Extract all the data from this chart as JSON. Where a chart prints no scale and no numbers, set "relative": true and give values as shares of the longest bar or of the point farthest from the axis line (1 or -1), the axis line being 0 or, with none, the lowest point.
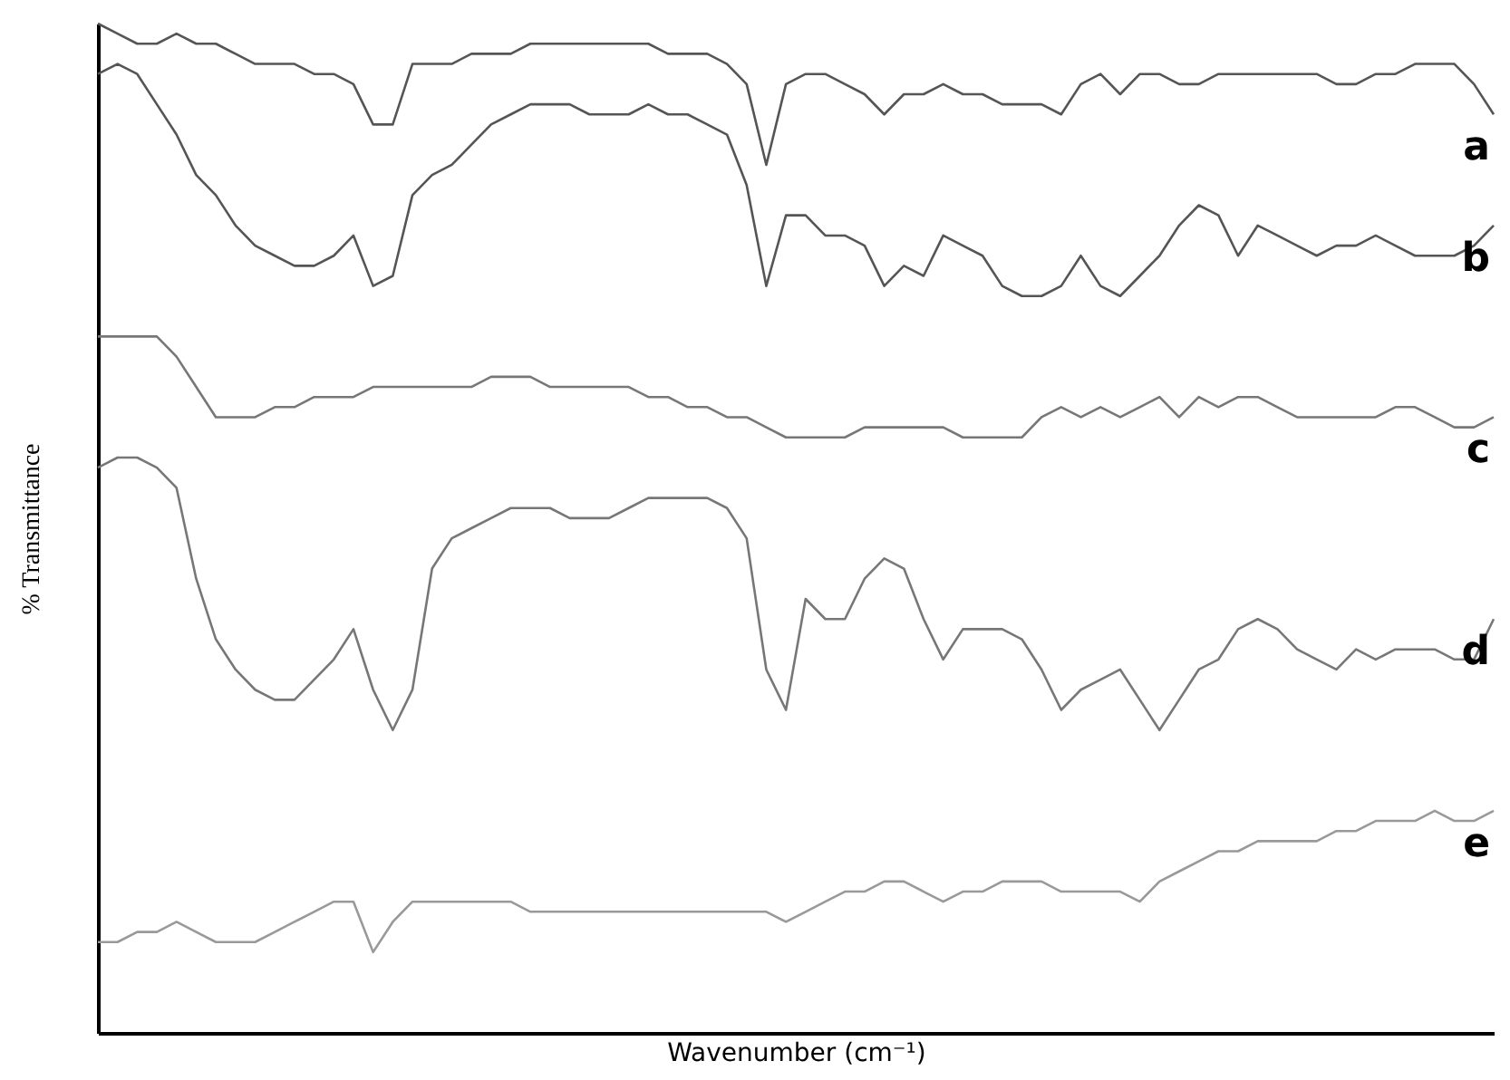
{
  "chart_data": {
    "type": "line",
    "relative": true,
    "xlabel": "Wavenumber (cm⁻¹)",
    "ylabel": "% Transmittance",
    "legend": false,
    "grid": false,
    "tick_labels": false,
    "line_style": "solid",
    "marker": "none",
    "categories": [
      null,
      null,
      null,
      null,
      null,
      null,
      null,
      null,
      null,
      null,
      null,
      null,
      null,
      null,
      null,
      null,
      null,
      null,
      null,
      null,
      null,
      null,
      null,
      null,
      null,
      null,
      null,
      null,
      null,
      null,
      null,
      null,
      null,
      null,
      null,
      null,
      null,
      null,
      null,
      null,
      null,
      null,
      null,
      null,
      null,
      null,
      null,
      null,
      null,
      null,
      null,
      null,
      null,
      null,
      null,
      null,
      null,
      null,
      null,
      null,
      null,
      null,
      null,
      null,
      null,
      null,
      null,
      null,
      null,
      null,
      null,
      null
    ],
    "series": [
      {
        "name": "a",
        "color": "#555555",
        "values": [
          1.0,
          0.99,
          0.98,
          0.98,
          0.99,
          0.98,
          0.98,
          0.97,
          0.96,
          0.96,
          0.96,
          0.95,
          0.95,
          0.94,
          0.9,
          0.9,
          0.96,
          0.96,
          0.96,
          0.97,
          0.97,
          0.97,
          0.98,
          0.98,
          0.98,
          0.98,
          0.98,
          0.98,
          0.98,
          0.97,
          0.97,
          0.97,
          0.96,
          0.94,
          0.86,
          0.94,
          0.95,
          0.95,
          0.94,
          0.93,
          0.91,
          0.93,
          0.93,
          0.94,
          0.93,
          0.93,
          0.92,
          0.92,
          0.92,
          0.91,
          0.94,
          0.95,
          0.93,
          0.95,
          0.95,
          0.94,
          0.94,
          0.95,
          0.95,
          0.95,
          0.95,
          0.95,
          0.95,
          0.94,
          0.94,
          0.95,
          0.95,
          0.96,
          0.96,
          0.96,
          0.94,
          0.91
        ]
      },
      {
        "name": "b",
        "color": "#555555",
        "values": [
          0.95,
          0.96,
          0.95,
          0.92,
          0.89,
          0.85,
          0.83,
          0.8,
          0.78,
          0.77,
          0.76,
          0.76,
          0.77,
          0.79,
          0.74,
          0.75,
          0.83,
          0.85,
          0.86,
          0.88,
          0.9,
          0.91,
          0.92,
          0.92,
          0.92,
          0.91,
          0.91,
          0.91,
          0.92,
          0.91,
          0.91,
          0.9,
          0.89,
          0.84,
          0.74,
          0.81,
          0.81,
          0.79,
          0.79,
          0.78,
          0.74,
          0.76,
          0.75,
          0.79,
          0.78,
          0.77,
          0.74,
          0.73,
          0.73,
          0.74,
          0.77,
          0.74,
          0.73,
          0.75,
          0.77,
          0.8,
          0.82,
          0.81,
          0.77,
          0.8,
          0.79,
          0.78,
          0.77,
          0.78,
          0.78,
          0.79,
          0.78,
          0.77,
          0.77,
          0.77,
          0.78,
          0.8
        ]
      },
      {
        "name": "c",
        "color": "#777777",
        "values": [
          0.69,
          0.69,
          0.69,
          0.69,
          0.67,
          0.64,
          0.61,
          0.61,
          0.61,
          0.62,
          0.62,
          0.63,
          0.63,
          0.63,
          0.64,
          0.64,
          0.64,
          0.64,
          0.64,
          0.64,
          0.65,
          0.65,
          0.65,
          0.64,
          0.64,
          0.64,
          0.64,
          0.64,
          0.63,
          0.63,
          0.62,
          0.62,
          0.61,
          0.61,
          0.6,
          0.59,
          0.59,
          0.59,
          0.59,
          0.6,
          0.6,
          0.6,
          0.6,
          0.6,
          0.59,
          0.59,
          0.59,
          0.59,
          0.61,
          0.62,
          0.61,
          0.62,
          0.61,
          0.62,
          0.63,
          0.61,
          0.63,
          0.62,
          0.63,
          0.63,
          0.62,
          0.61,
          0.61,
          0.61,
          0.61,
          0.61,
          0.62,
          0.62,
          0.61,
          0.6,
          0.6,
          0.61
        ]
      },
      {
        "name": "d",
        "color": "#777777",
        "values": [
          0.56,
          0.57,
          0.57,
          0.56,
          0.54,
          0.45,
          0.39,
          0.36,
          0.34,
          0.33,
          0.33,
          0.35,
          0.37,
          0.4,
          0.34,
          0.3,
          0.34,
          0.46,
          0.49,
          0.5,
          0.51,
          0.52,
          0.52,
          0.52,
          0.51,
          0.51,
          0.51,
          0.52,
          0.53,
          0.53,
          0.53,
          0.53,
          0.52,
          0.49,
          0.36,
          0.32,
          0.43,
          0.41,
          0.41,
          0.45,
          0.47,
          0.46,
          0.41,
          0.37,
          0.4,
          0.4,
          0.4,
          0.39,
          0.36,
          0.32,
          0.34,
          0.35,
          0.36,
          0.33,
          0.3,
          0.33,
          0.36,
          0.37,
          0.4,
          0.41,
          0.4,
          0.38,
          0.37,
          0.36,
          0.38,
          0.37,
          0.38,
          0.38,
          0.38,
          0.37,
          0.37,
          0.41
        ]
      },
      {
        "name": "e",
        "color": "#999999",
        "values": [
          0.09,
          0.09,
          0.1,
          0.1,
          0.11,
          0.1,
          0.09,
          0.09,
          0.09,
          0.1,
          0.11,
          0.12,
          0.13,
          0.13,
          0.08,
          0.11,
          0.13,
          0.13,
          0.13,
          0.13,
          0.13,
          0.13,
          0.12,
          0.12,
          0.12,
          0.12,
          0.12,
          0.12,
          0.12,
          0.12,
          0.12,
          0.12,
          0.12,
          0.12,
          0.12,
          0.11,
          0.12,
          0.13,
          0.14,
          0.14,
          0.15,
          0.15,
          0.14,
          0.13,
          0.14,
          0.14,
          0.15,
          0.15,
          0.15,
          0.14,
          0.14,
          0.14,
          0.14,
          0.13,
          0.15,
          0.16,
          0.17,
          0.18,
          0.18,
          0.19,
          0.19,
          0.19,
          0.19,
          0.2,
          0.2,
          0.21,
          0.21,
          0.21,
          0.22,
          0.21,
          0.21,
          0.22
        ]
      }
    ]
  }
}
